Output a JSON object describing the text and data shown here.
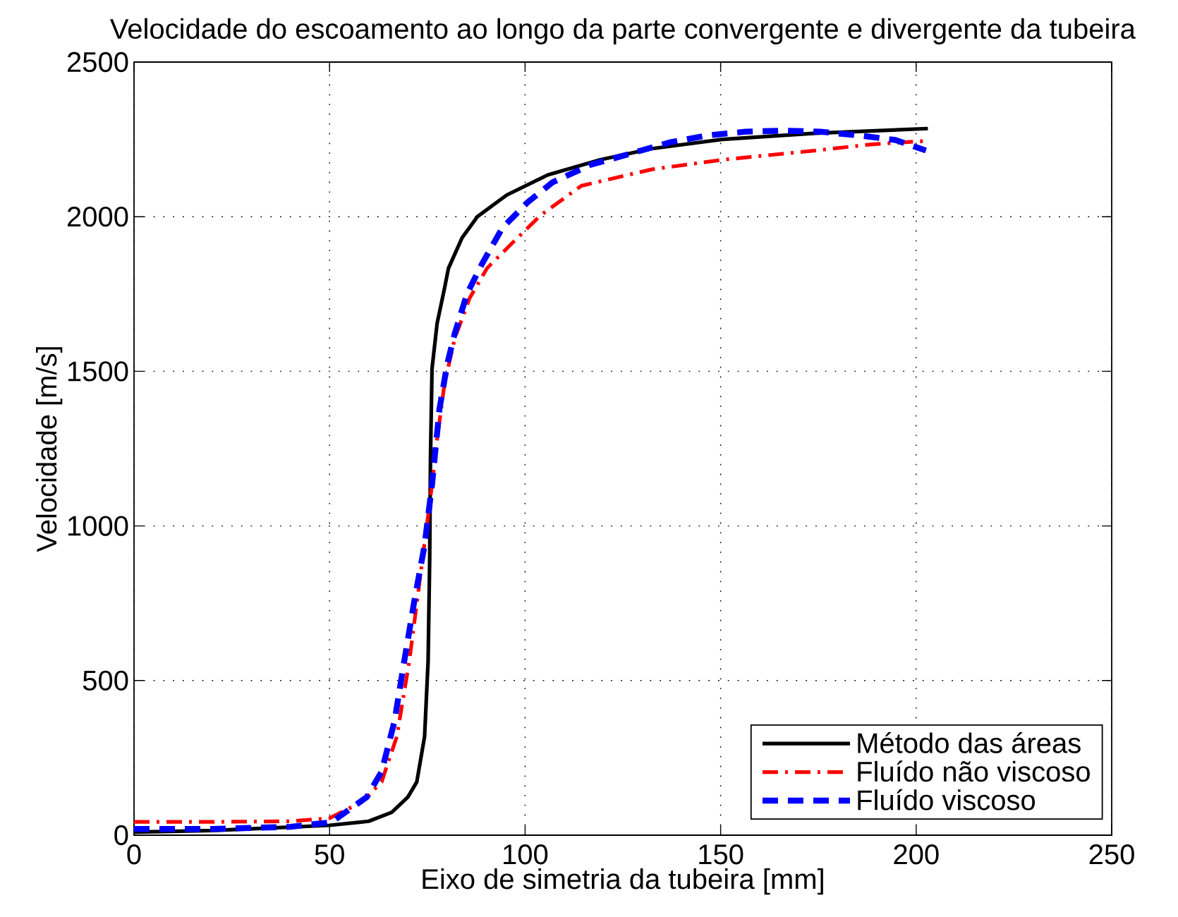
{
  "chart_data": {
    "type": "line",
    "title": "Velocidade do escoamento ao longo da parte convergente e divergente da tubeira",
    "xlabel": "Eixo de simetria da tubeira [mm]",
    "ylabel": "Velocidade [m/s]",
    "xlim": [
      0,
      250
    ],
    "ylim": [
      0,
      2500
    ],
    "xticks": [
      0,
      50,
      100,
      150,
      200,
      250
    ],
    "yticks": [
      0,
      500,
      1000,
      1500,
      2000,
      2500
    ],
    "grid": true,
    "legend": "bottom right",
    "series": [
      {
        "name": "Método das áreas",
        "color": "#000000",
        "line_style": "solid",
        "x": [
          0,
          20,
          37.7,
          50,
          60,
          65.9,
          70,
          72.3,
          74.3,
          75.2,
          75.6,
          75.8,
          76.2,
          77.5,
          79.4,
          80.4,
          83.9,
          87.8,
          95.3,
          105.8,
          119.2,
          132.4,
          150.4,
          174.3,
          203
        ],
        "values": [
          10,
          15,
          25,
          32,
          45,
          74,
          123,
          172,
          319,
          563,
          890,
          1215,
          1508,
          1655,
          1769,
          1833,
          1932,
          2000,
          2070,
          2135,
          2184,
          2220,
          2250,
          2270,
          2285
        ]
      },
      {
        "name": "Fluído não viscoso",
        "color": "#ff0000",
        "line_style": "dashdot",
        "x": [
          0,
          20,
          40,
          50,
          58.2,
          63.3,
          67.2,
          70.4,
          72.9,
          74.9,
          76.2,
          77.5,
          79.4,
          82,
          85.8,
          90.3,
          96.8,
          104,
          114.4,
          132.4,
          150.4,
          174.3,
          188.7,
          202.5
        ],
        "values": [
          43,
          43,
          45,
          55,
          107,
          172,
          319,
          563,
          808,
          1004,
          1133,
          1280,
          1460,
          1606,
          1736,
          1834,
          1916,
          2005,
          2100,
          2153,
          2184,
          2214,
          2234,
          2245
        ]
      },
      {
        "name": "Fluído viscoso",
        "color": "#0000ff",
        "line_style": "dashed",
        "x": [
          0,
          20,
          40,
          50.5,
          59.5,
          63.3,
          66.6,
          69.1,
          71.7,
          74.3,
          76.2,
          78.1,
          80.1,
          82,
          85.2,
          89.1,
          94.2,
          100.6,
          107,
          116.8,
          126.4,
          137.2,
          146.8,
          156.4,
          166,
          175.5,
          185.1,
          194.7,
          202.5
        ],
        "values": [
          20,
          20,
          27,
          42,
          123,
          205,
          368,
          563,
          759,
          938,
          1133,
          1378,
          1524,
          1622,
          1752,
          1850,
          1964,
          2046,
          2111,
          2168,
          2202,
          2241,
          2263,
          2275,
          2278,
          2275,
          2263,
          2248,
          2214
        ]
      }
    ]
  }
}
